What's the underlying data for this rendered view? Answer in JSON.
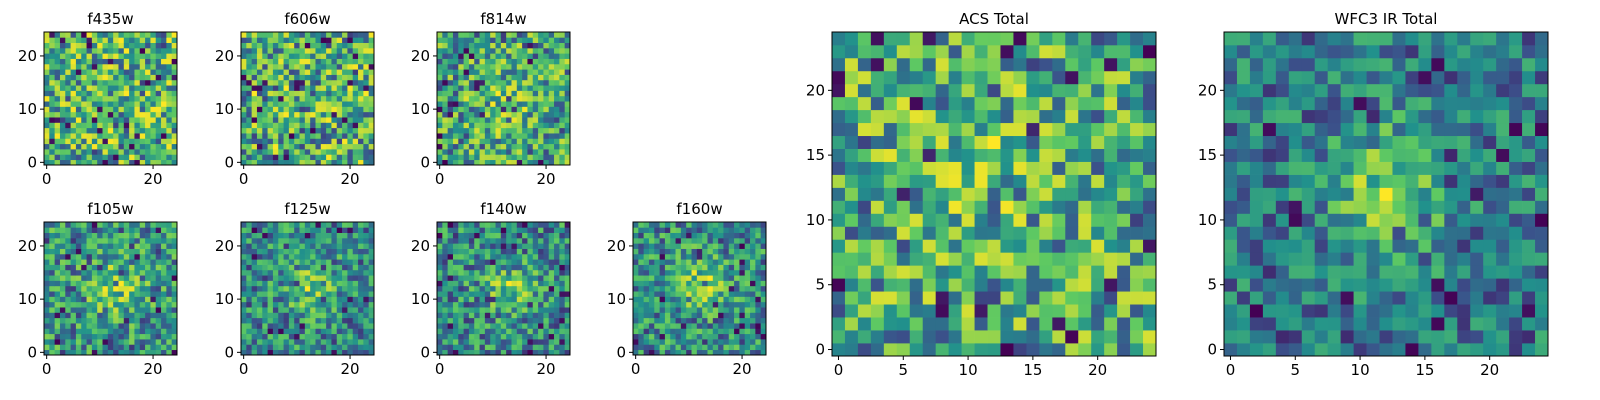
{
  "chart_data": [
    {
      "type": "heatmap",
      "title": "f435w",
      "size": 25,
      "seed": 11,
      "blob": null,
      "x_ticks": [
        0,
        20
      ],
      "y_ticks": [
        0,
        10,
        20
      ]
    },
    {
      "type": "heatmap",
      "title": "f606w",
      "size": 25,
      "seed": 23,
      "blob": null,
      "x_ticks": [
        0,
        20
      ],
      "y_ticks": [
        0,
        10,
        20
      ]
    },
    {
      "type": "heatmap",
      "title": "f814w",
      "size": 25,
      "seed": 37,
      "blob": {
        "cx": 12,
        "cy": 12,
        "sigma": 4,
        "amp": 0.12
      },
      "x_ticks": [
        0,
        20
      ],
      "y_ticks": [
        0,
        10,
        20
      ]
    },
    {
      "type": "heatmap",
      "title": "f105w",
      "size": 25,
      "seed": 41,
      "blob": {
        "cx": 13,
        "cy": 12,
        "sigma": 3.5,
        "amp": 0.3
      },
      "x_ticks": [
        0,
        20
      ],
      "y_ticks": [
        0,
        10,
        20
      ]
    },
    {
      "type": "heatmap",
      "title": "f125w",
      "size": 25,
      "seed": 53,
      "blob": {
        "cx": 13,
        "cy": 12,
        "sigma": 3.5,
        "amp": 0.3
      },
      "x_ticks": [
        0,
        20
      ],
      "y_ticks": [
        0,
        10,
        20
      ]
    },
    {
      "type": "heatmap",
      "title": "f140w",
      "size": 25,
      "seed": 67,
      "blob": {
        "cx": 13,
        "cy": 12,
        "sigma": 3.5,
        "amp": 0.3
      },
      "x_ticks": [
        0,
        20
      ],
      "y_ticks": [
        0,
        10,
        20
      ]
    },
    {
      "type": "heatmap",
      "title": "f160w",
      "size": 25,
      "seed": 79,
      "blob": {
        "cx": 12,
        "cy": 13,
        "sigma": 3.2,
        "amp": 0.35
      },
      "x_ticks": [
        0,
        20
      ],
      "y_ticks": [
        0,
        10,
        20
      ]
    },
    {
      "type": "heatmap",
      "title": "ACS Total",
      "size": 25,
      "seed": 97,
      "blob": {
        "cx": 11,
        "cy": 14,
        "sigma": 4,
        "amp": 0.1
      },
      "x_ticks": [
        0,
        5,
        10,
        15,
        20
      ],
      "y_ticks": [
        0,
        5,
        10,
        15,
        20
      ]
    },
    {
      "type": "heatmap",
      "title": "WFC3 IR Total",
      "size": 25,
      "seed": 131,
      "blob": {
        "cx": 12.5,
        "cy": 12.5,
        "sigma": 3.3,
        "amp": 0.55
      },
      "x_ticks": [
        0,
        5,
        10,
        15,
        20
      ],
      "y_ticks": [
        0,
        5,
        10,
        15,
        20
      ]
    }
  ],
  "colormap": [
    "#440154",
    "#3b528b",
    "#21918c",
    "#5ec962",
    "#fde725"
  ]
}
